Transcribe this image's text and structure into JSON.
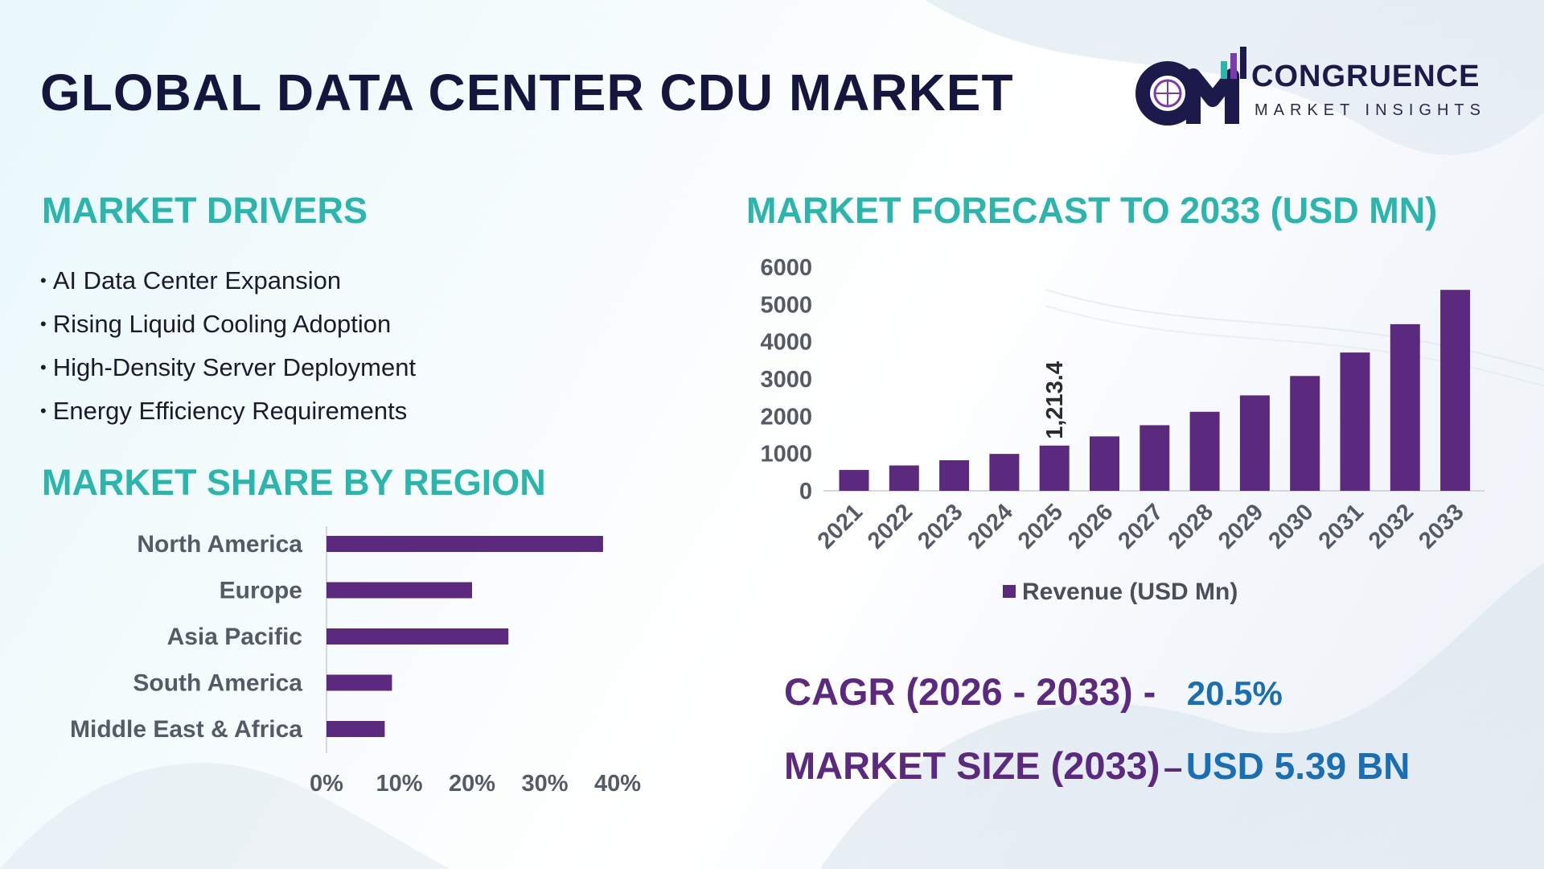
{
  "page_title": "GLOBAL DATA CENTER CDU MARKET",
  "logo": {
    "name": "CONGRUENCE",
    "tagline": "MARKET INSIGHTS"
  },
  "drivers": {
    "heading": "MARKET DRIVERS",
    "items": [
      "AI Data Center Expansion",
      "Rising Liquid Cooling Adoption",
      "High-Density Server Deployment",
      "Energy Efficiency Requirements"
    ]
  },
  "region": {
    "heading": "MARKET SHARE BY REGION"
  },
  "forecast": {
    "heading": "MARKET FORECAST TO 2033 (USD MN)"
  },
  "stats": {
    "cagr_label": "CAGR (2026 - 2033) -",
    "cagr_value": "20.5%",
    "size_label": "MARKET SIZE (2033)",
    "size_sep": "–",
    "size_value": "USD 5.39 BN"
  },
  "colors": {
    "bar": "#5b2a7e",
    "heading": "#2ab5ad",
    "title": "#15163d",
    "stat_value": "#1a6fb4"
  },
  "chart_data": [
    {
      "type": "bar",
      "orientation": "horizontal",
      "categories": [
        "North America",
        "Europe",
        "Asia Pacific",
        "South America",
        "Middle East & Africa"
      ],
      "values": [
        38,
        20,
        25,
        9,
        8
      ],
      "value_unit": "%",
      "xlim": [
        0,
        40
      ],
      "ticks": [
        "0%",
        "10%",
        "20%",
        "30%",
        "40%"
      ],
      "grid": false
    },
    {
      "type": "bar",
      "orientation": "vertical",
      "categories": [
        "2021",
        "2022",
        "2023",
        "2024",
        "2025",
        "2026",
        "2027",
        "2028",
        "2029",
        "2030",
        "2031",
        "2032",
        "2033"
      ],
      "series": [
        {
          "name": "Revenue (USD Mn)",
          "values": [
            560,
            680,
            820,
            990,
            1213.4,
            1460,
            1760,
            2120,
            2560,
            3080,
            3710,
            4470,
            5390
          ]
        }
      ],
      "data_labels": [
        {
          "category": "2025",
          "text": "1,213.4"
        }
      ],
      "ylim": [
        0,
        6000
      ],
      "yticks": [
        0,
        1000,
        2000,
        3000,
        4000,
        5000,
        6000
      ],
      "legend": "bottom",
      "grid": false
    }
  ]
}
